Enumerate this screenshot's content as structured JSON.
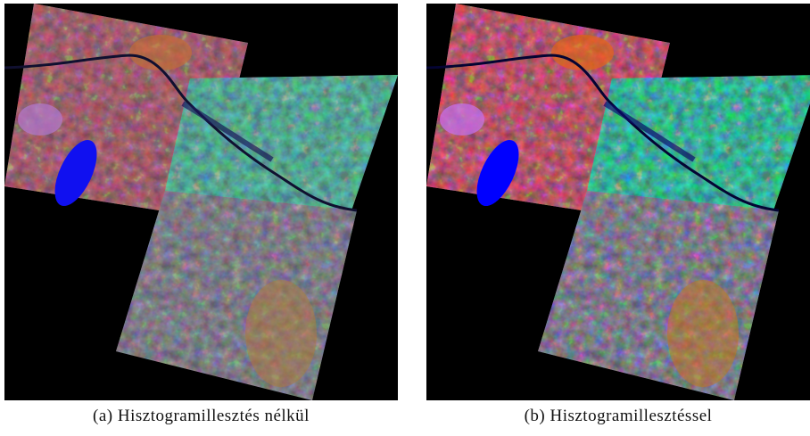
{
  "figure": {
    "panels": [
      {
        "caption": "(a) Hisztogramillesztés nélkül"
      },
      {
        "caption": "(b) Hisztogramillesztéssel"
      }
    ]
  }
}
